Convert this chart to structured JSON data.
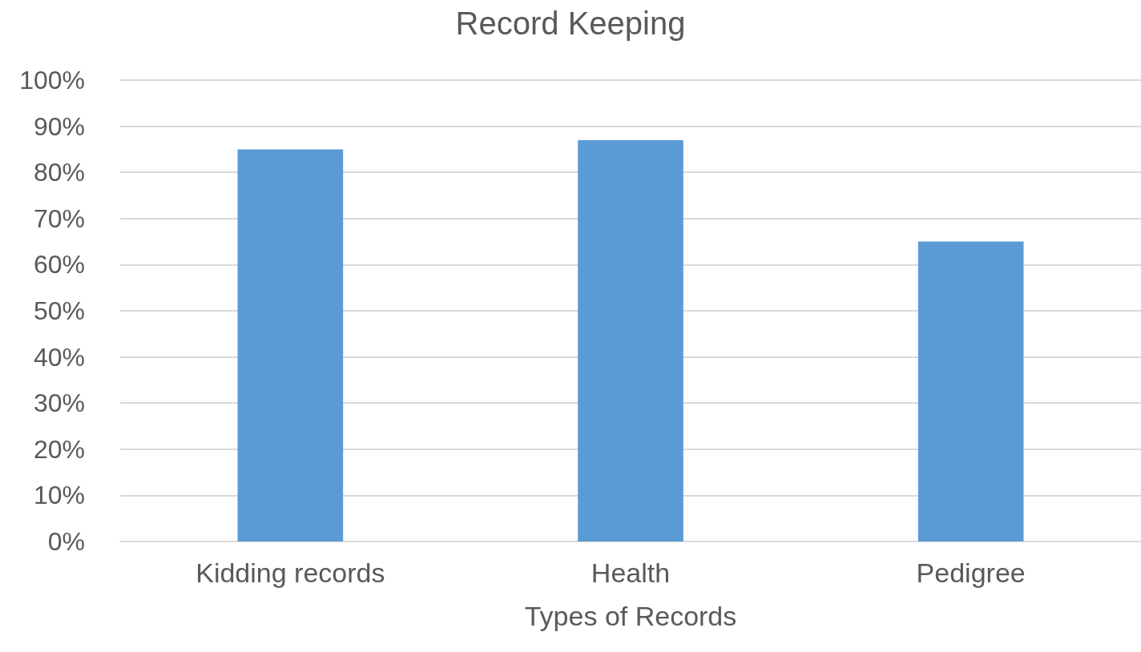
{
  "chart_data": {
    "type": "bar",
    "title": "Record Keeping",
    "xlabel": "Types of Records",
    "categories": [
      "Kidding records",
      "Health",
      "Pedigree"
    ],
    "values": [
      85,
      87,
      65
    ],
    "color": "#5b9bd5",
    "ylim": [
      0,
      100
    ],
    "yticks": [
      {
        "value": 0,
        "label": "0%"
      },
      {
        "value": 10,
        "label": "10%"
      },
      {
        "value": 20,
        "label": "20%"
      },
      {
        "value": 30,
        "label": "30%"
      },
      {
        "value": 40,
        "label": "40%"
      },
      {
        "value": 50,
        "label": "50%"
      },
      {
        "value": 60,
        "label": "60%"
      },
      {
        "value": 70,
        "label": "70%"
      },
      {
        "value": 80,
        "label": "80%"
      },
      {
        "value": 90,
        "label": "90%"
      },
      {
        "value": 100,
        "label": "100%"
      }
    ],
    "grid": "y"
  }
}
